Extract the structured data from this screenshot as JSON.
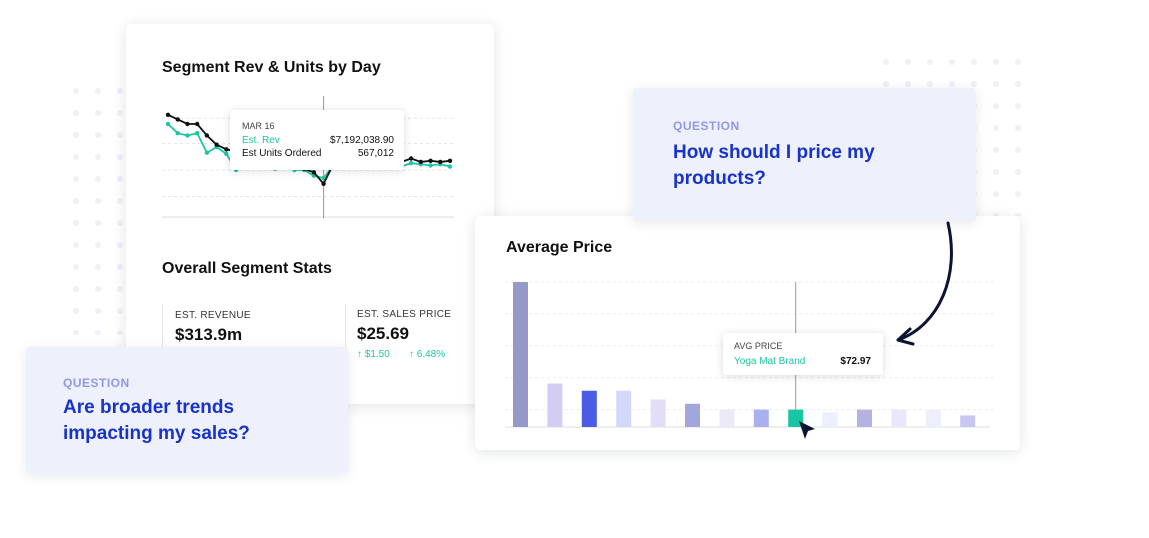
{
  "rev_card": {
    "title": "Segment Rev & Units by Day",
    "tooltip": {
      "date": "MAR 16",
      "rev_label": "Est. Rev",
      "rev_value": "$7,192,038.90",
      "units_label": "Est Units Ordered",
      "units_value": "567,012"
    },
    "stats_title": "Overall Segment Stats",
    "stats": [
      {
        "label": "EST. REVENUE",
        "value": "$313.9m"
      },
      {
        "label": "EST. SALES PRICE",
        "value": "$25.69",
        "change1": "↑ $1.50",
        "change2": "↑ 6.48%"
      }
    ]
  },
  "price_card": {
    "title": "Average Price",
    "tooltip": {
      "label": "AVG PRICE",
      "brand": "Yoga Mat Brand",
      "value": "$72.97"
    }
  },
  "questions": [
    {
      "label": "QUESTION",
      "text": "How should I price my products?"
    },
    {
      "label": "QUESTION",
      "text": "Are broader trends impacting my sales?"
    }
  ],
  "colors": {
    "teal": "#1cc7a5",
    "black_line": "#111111",
    "accent_blue": "#1733c9"
  },
  "chart_data": [
    {
      "type": "line",
      "title": "Segment Rev & Units by Day",
      "x": [
        1,
        2,
        3,
        4,
        5,
        6,
        7,
        8,
        9,
        10,
        11,
        12,
        13,
        14,
        15,
        16,
        17,
        18,
        19,
        20,
        21,
        22,
        23,
        24,
        25,
        26,
        27,
        28,
        29,
        30
      ],
      "series": [
        {
          "name": "Est Units Ordered",
          "color": "#111111",
          "values": [
            88,
            84,
            80,
            80,
            70,
            62,
            58,
            56,
            50,
            53,
            47,
            44,
            45,
            42,
            41,
            38,
            28,
            45,
            48,
            46,
            42,
            42,
            46,
            44,
            47,
            50,
            47,
            48,
            47,
            48
          ]
        },
        {
          "name": "Est. Rev",
          "color": "#1cc7a5",
          "values": [
            80,
            72,
            70,
            72,
            55,
            60,
            54,
            40,
            42,
            46,
            44,
            41,
            45,
            40,
            40,
            35,
            33,
            44,
            45,
            47,
            46,
            44,
            45,
            47,
            43,
            46,
            45,
            44,
            45,
            43
          ]
        }
      ],
      "highlight_index": 16,
      "ylim": [
        0,
        100
      ]
    },
    {
      "type": "bar",
      "title": "Average Price",
      "values": [
        100,
        30,
        25,
        25,
        19,
        16,
        12,
        12,
        12,
        10,
        12,
        12,
        12,
        8
      ],
      "colors": [
        "#9599c8",
        "#d3cdf6",
        "#4a5ce3",
        "#d3d8fa",
        "#e3ddf7",
        "#a3a6dd",
        "#eceaf8",
        "#a9b0ef",
        "#18c6a4",
        "#eceffd",
        "#b6b2df",
        "#e8e8fa",
        "#eceffd",
        "#c9c6f2"
      ],
      "highlight_index": 8,
      "ylim": [
        0,
        100
      ]
    }
  ]
}
